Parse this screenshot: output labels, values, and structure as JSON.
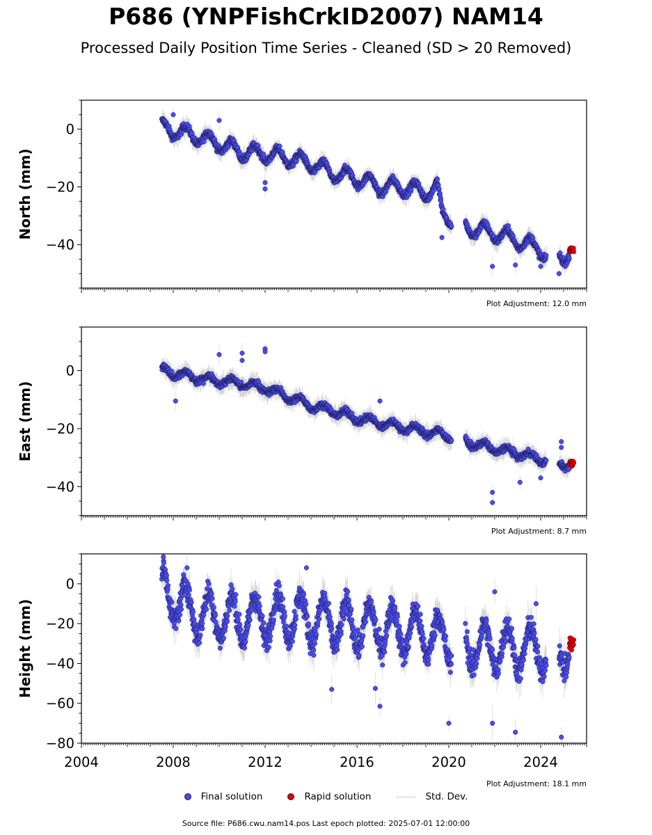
{
  "title": "P686 (YNPFishCrkID2007) NAM14",
  "subtitle": "Processed Daily Position Time Series - Cleaned (SD > 20 Removed)",
  "legend": {
    "final": "Final solution",
    "rapid": "Rapid solution",
    "stddev": "Std. Dev."
  },
  "source": "Source file: P686.cwu.nam14.pos  Last epoch plotted: 2025-07-01 12:00:00",
  "colors": {
    "final": "#4b4bf2",
    "rapid": "#e00000",
    "stddev": "#b4b4b4"
  },
  "chart_data": [
    {
      "type": "scatter",
      "ylabel": "North (mm)",
      "adjustment": "Plot Adjustment: 12.0 mm",
      "xlim": [
        2004,
        2026
      ],
      "ylim": [
        -55,
        10
      ],
      "yticks": [
        0,
        -20,
        -40
      ],
      "ytick_labels": [
        "0",
        "−20",
        "−40"
      ],
      "xticks": [
        2004,
        2008,
        2012,
        2016,
        2020,
        2024
      ],
      "show_xtick_labels": false,
      "start": 2007.5,
      "final_knots": [
        [
          2007.5,
          0.5
        ],
        [
          2009.0,
          -2.5
        ],
        [
          2010.0,
          -5.0
        ],
        [
          2011.0,
          -8.0
        ],
        [
          2012.0,
          -8.5
        ],
        [
          2013.0,
          -10.0
        ],
        [
          2014.0,
          -12.0
        ],
        [
          2015.0,
          -15.5
        ],
        [
          2016.0,
          -17.0
        ],
        [
          2017.0,
          -20.0
        ],
        [
          2018.0,
          -20.0
        ],
        [
          2019.0,
          -22.0
        ],
        [
          2019.5,
          -20.0
        ],
        [
          2019.7,
          -29.0
        ],
        [
          2020.3,
          -32.0
        ],
        [
          2021.0,
          -34.5
        ],
        [
          2022.0,
          -36.0
        ],
        [
          2023.0,
          -38.5
        ],
        [
          2024.0,
          -41.5
        ],
        [
          2024.1,
          -43.0
        ],
        [
          2025.2,
          -43.5
        ]
      ],
      "seasonal_amp": 2.5,
      "noise": 0.9,
      "outliers": [
        [
          2012.0,
          -18.5
        ],
        [
          2012.0,
          -20.7
        ],
        [
          2008.0,
          5.0
        ],
        [
          2010.0,
          3.0
        ],
        [
          2019.7,
          -37.5
        ],
        [
          2021.9,
          -47.5
        ],
        [
          2022.9,
          -47.0
        ],
        [
          2024.0,
          -47.5
        ],
        [
          2024.8,
          -50.0
        ]
      ],
      "rapid": {
        "start": 2025.25,
        "end": 2025.45,
        "center": -42.0,
        "spread": 1.2
      },
      "err_base": 2.0
    },
    {
      "type": "scatter",
      "ylabel": "East (mm)",
      "adjustment": "Plot Adjustment: 8.7 mm",
      "xlim": [
        2004,
        2026
      ],
      "ylim": [
        -50,
        15
      ],
      "yticks": [
        0,
        -20,
        -40
      ],
      "ytick_labels": [
        "0",
        "−20",
        "−40"
      ],
      "xticks": [
        2004,
        2008,
        2012,
        2016,
        2020,
        2024
      ],
      "show_xtick_labels": false,
      "start": 2007.5,
      "final_knots": [
        [
          2007.5,
          0.0
        ],
        [
          2009.0,
          -2.5
        ],
        [
          2010.0,
          -3.5
        ],
        [
          2011.0,
          -4.5
        ],
        [
          2012.0,
          -6.0
        ],
        [
          2013.0,
          -9.0
        ],
        [
          2014.0,
          -12.0
        ],
        [
          2015.0,
          -14.0
        ],
        [
          2016.0,
          -16.5
        ],
        [
          2017.0,
          -18.0
        ],
        [
          2018.0,
          -19.5
        ],
        [
          2019.0,
          -21.0
        ],
        [
          2020.0,
          -22.5
        ],
        [
          2021.0,
          -25.0
        ],
        [
          2022.0,
          -27.0
        ],
        [
          2023.0,
          -28.5
        ],
        [
          2024.0,
          -30.5
        ],
        [
          2025.3,
          -32.5
        ]
      ],
      "seasonal_amp": 1.3,
      "noise": 0.8,
      "outliers": [
        [
          2008.1,
          -10.5
        ],
        [
          2010.0,
          5.5
        ],
        [
          2011.0,
          6.0
        ],
        [
          2011.0,
          3.5
        ],
        [
          2012.0,
          7.5
        ],
        [
          2012.0,
          6.5
        ],
        [
          2017.0,
          -10.5
        ],
        [
          2021.9,
          -42.0
        ],
        [
          2021.9,
          -45.5
        ],
        [
          2023.1,
          -38.5
        ],
        [
          2024.0,
          -37.0
        ],
        [
          2024.9,
          -24.5
        ],
        [
          2024.9,
          -26.5
        ]
      ],
      "rapid": {
        "start": 2025.25,
        "end": 2025.45,
        "center": -32.0,
        "spread": 1.0
      },
      "err_base": 2.0
    },
    {
      "type": "scatter",
      "ylabel": "Height (mm)",
      "adjustment": "Plot Adjustment: 18.1 mm",
      "xlim": [
        2004,
        2026
      ],
      "ylim": [
        -80,
        15
      ],
      "yticks": [
        0,
        -20,
        -40,
        -60,
        -80
      ],
      "ytick_labels": [
        "0",
        "−20",
        "−40",
        "−60",
        "−80"
      ],
      "xticks": [
        2004,
        2008,
        2012,
        2016,
        2020,
        2024
      ],
      "xtick_labels": [
        "2004",
        "2008",
        "2012",
        "2016",
        "2020",
        "2024"
      ],
      "show_xtick_labels": true,
      "start": 2007.5,
      "final_knots": [
        [
          2007.5,
          -3.0
        ],
        [
          2009.0,
          -15.0
        ],
        [
          2011.0,
          -18.0
        ],
        [
          2013.0,
          -16.0
        ],
        [
          2015.0,
          -20.0
        ],
        [
          2017.0,
          -22.0
        ],
        [
          2019.0,
          -25.0
        ],
        [
          2020.5,
          -30.0
        ],
        [
          2022.0,
          -32.0
        ],
        [
          2024.0,
          -33.0
        ],
        [
          2025.3,
          -32.0
        ]
      ],
      "seasonal_amp": 11.0,
      "noise": 4.5,
      "outliers": [
        [
          2008.6,
          8.0
        ],
        [
          2013.8,
          8.0
        ],
        [
          2014.9,
          -53.0
        ],
        [
          2017.0,
          -61.5
        ],
        [
          2020.0,
          -70.0
        ],
        [
          2021.9,
          -70.0
        ],
        [
          2022.0,
          -4.0
        ],
        [
          2022.9,
          -74.5
        ],
        [
          2023.8,
          -10.0
        ],
        [
          2024.9,
          -77.0
        ],
        [
          2016.8,
          -52.5
        ]
      ],
      "rapid": {
        "start": 2025.25,
        "end": 2025.45,
        "center": -30.0,
        "spread": 4.0
      },
      "err_base": 5.0
    }
  ]
}
